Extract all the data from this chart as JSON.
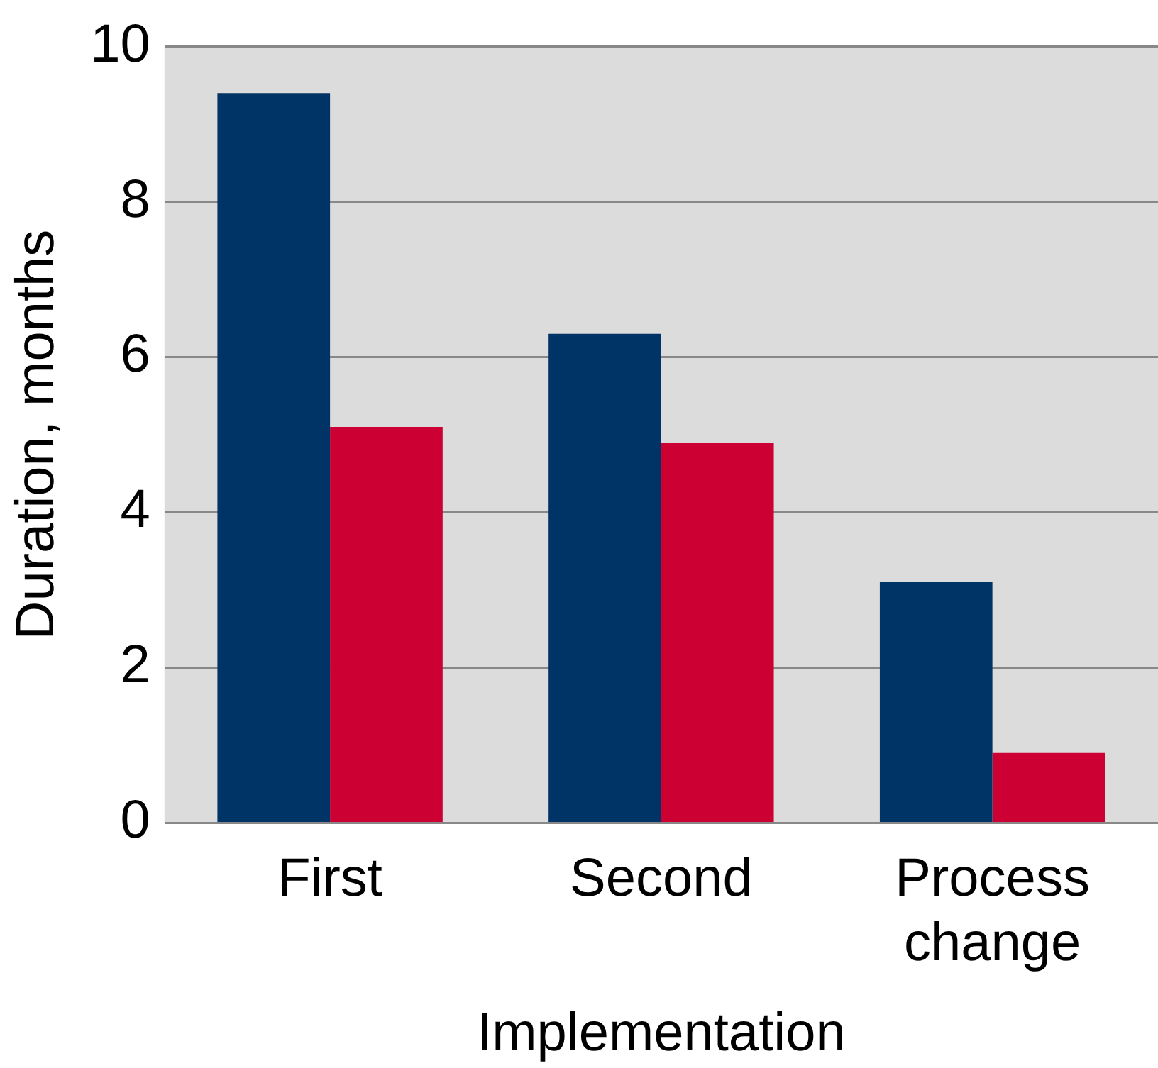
{
  "chart_data": {
    "type": "bar",
    "xlabel": "Implementation",
    "ylabel": "Duration, months",
    "categories": [
      "First",
      "Second",
      "Process change"
    ],
    "series": [
      {
        "color": "#003366",
        "values": [
          9.4,
          6.3,
          3.1
        ]
      },
      {
        "color": "#cc0033",
        "values": [
          5.1,
          4.9,
          0.9
        ]
      }
    ],
    "ylim": [
      0,
      10
    ],
    "yticks": [
      0,
      2,
      4,
      6,
      8,
      10
    ],
    "grid": "y",
    "legend": false
  }
}
